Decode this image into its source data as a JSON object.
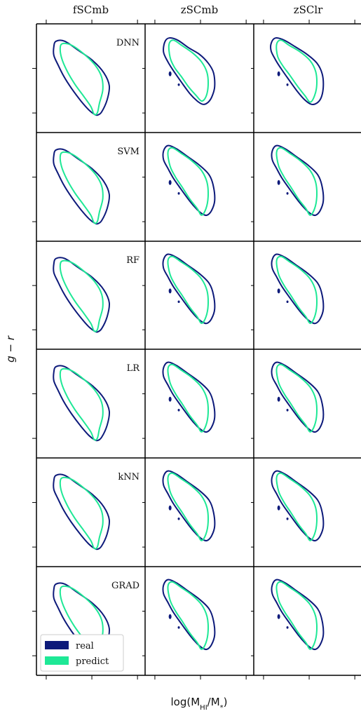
{
  "chart_data": {
    "type": "contour-grid",
    "columns": [
      "fSCmb",
      "zSCmb",
      "zSClr"
    ],
    "rows": [
      "DNN",
      "SVM",
      "RF",
      "LR",
      "kNN",
      "GRAD"
    ],
    "xlabel": "log(M_HI/M_*)",
    "ylabel": "g − r",
    "series": [
      {
        "name": "real",
        "color": "#0d1a7a"
      },
      {
        "name": "predict",
        "color": "#1ee896"
      }
    ],
    "legend_position": "lower-left",
    "panels": [
      {
        "row": "DNN",
        "col": "fSCmb",
        "shape": "fscmb"
      },
      {
        "row": "DNN",
        "col": "zSCmb",
        "shape": "zscmb_dnn"
      },
      {
        "row": "DNN",
        "col": "zSClr",
        "shape": "zsclr_dnn"
      },
      {
        "row": "SVM",
        "col": "fSCmb",
        "shape": "fscmb"
      },
      {
        "row": "SVM",
        "col": "zSCmb",
        "shape": "zsc"
      },
      {
        "row": "SVM",
        "col": "zSClr",
        "shape": "zsc"
      },
      {
        "row": "RF",
        "col": "fSCmb",
        "shape": "fscmb"
      },
      {
        "row": "RF",
        "col": "zSCmb",
        "shape": "zsc"
      },
      {
        "row": "RF",
        "col": "zSClr",
        "shape": "zsc"
      },
      {
        "row": "LR",
        "col": "fSCmb",
        "shape": "fscmb"
      },
      {
        "row": "LR",
        "col": "zSCmb",
        "shape": "zsc"
      },
      {
        "row": "LR",
        "col": "zSClr",
        "shape": "zsc"
      },
      {
        "row": "kNN",
        "col": "fSCmb",
        "shape": "fscmb"
      },
      {
        "row": "kNN",
        "col": "zSCmb",
        "shape": "zsc"
      },
      {
        "row": "kNN",
        "col": "zSClr",
        "shape": "zsc"
      },
      {
        "row": "GRAD",
        "col": "fSCmb",
        "shape": "fscmb"
      },
      {
        "row": "GRAD",
        "col": "zSCmb",
        "shape": "zsc"
      },
      {
        "row": "GRAD",
        "col": "zSClr",
        "shape": "zsc"
      }
    ]
  }
}
